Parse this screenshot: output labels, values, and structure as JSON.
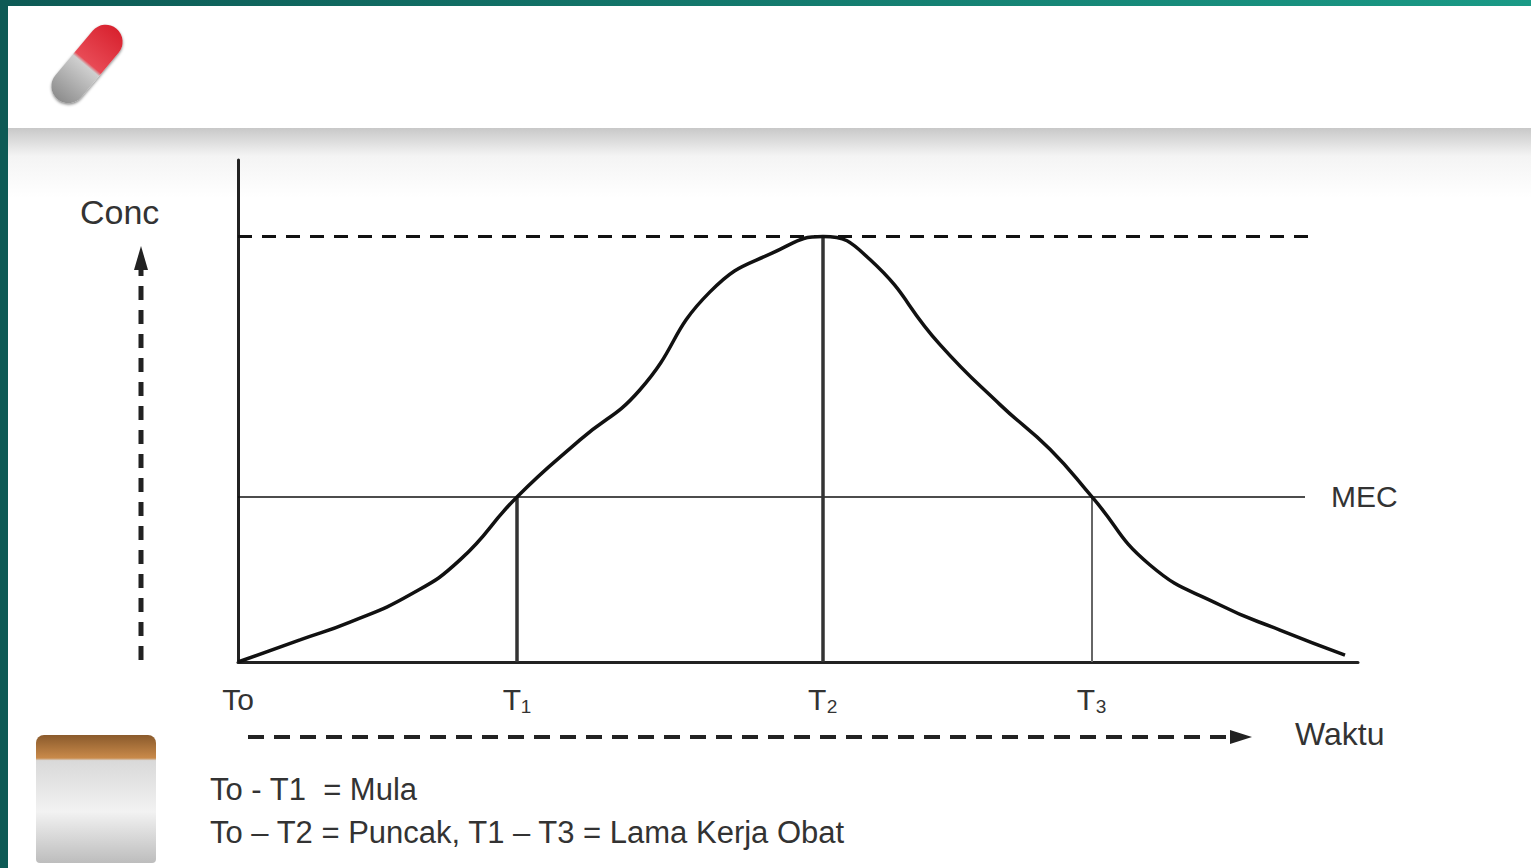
{
  "chart_data": {
    "type": "line",
    "x_label": "Waktu",
    "y_label": "Conc",
    "xlim": [
      0,
      112
    ],
    "ylim": [
      0,
      118
    ],
    "xticks": [
      {
        "value": 0,
        "label": "To"
      },
      {
        "value": 27.9,
        "label": "T₁"
      },
      {
        "value": 58.5,
        "label": "T₂"
      },
      {
        "value": 85.4,
        "label": "T₃"
      }
    ],
    "tick_labels": "x",
    "grid": false,
    "color": "#111111",
    "x": [
      0,
      6.2,
      11.2,
      17.2,
      22.2,
      27.9,
      34.2,
      40.2,
      47.2,
      54.2,
      58.5,
      63.2,
      70.2,
      76.2,
      81.2,
      85.4,
      91.2,
      98.2,
      104.2,
      110.7
    ],
    "values": [
      0,
      5.2,
      9.4,
      15.8,
      24,
      38.8,
      52.2,
      64,
      87,
      97,
      100,
      94.6,
      74.6,
      60.5,
      50,
      38.8,
      22.8,
      13.4,
      7.5,
      1.6
    ],
    "hlines": [
      {
        "y": 38.8,
        "x": [
          0,
          106.7
        ],
        "label": "MEC",
        "line_style": "solid"
      },
      {
        "y": 100,
        "x": [
          0,
          107.7
        ],
        "line_style": "dashed"
      }
    ],
    "vlines": [
      {
        "x": 27.9,
        "y": 38.8
      },
      {
        "x": 58.5,
        "y": 100
      },
      {
        "x": 85.4,
        "y": 38.8
      }
    ],
    "notes": [
      "To - T1  = Mula",
      "To – T2 = Puncak, T1 – T3 = Lama Kerja Obat"
    ]
  }
}
